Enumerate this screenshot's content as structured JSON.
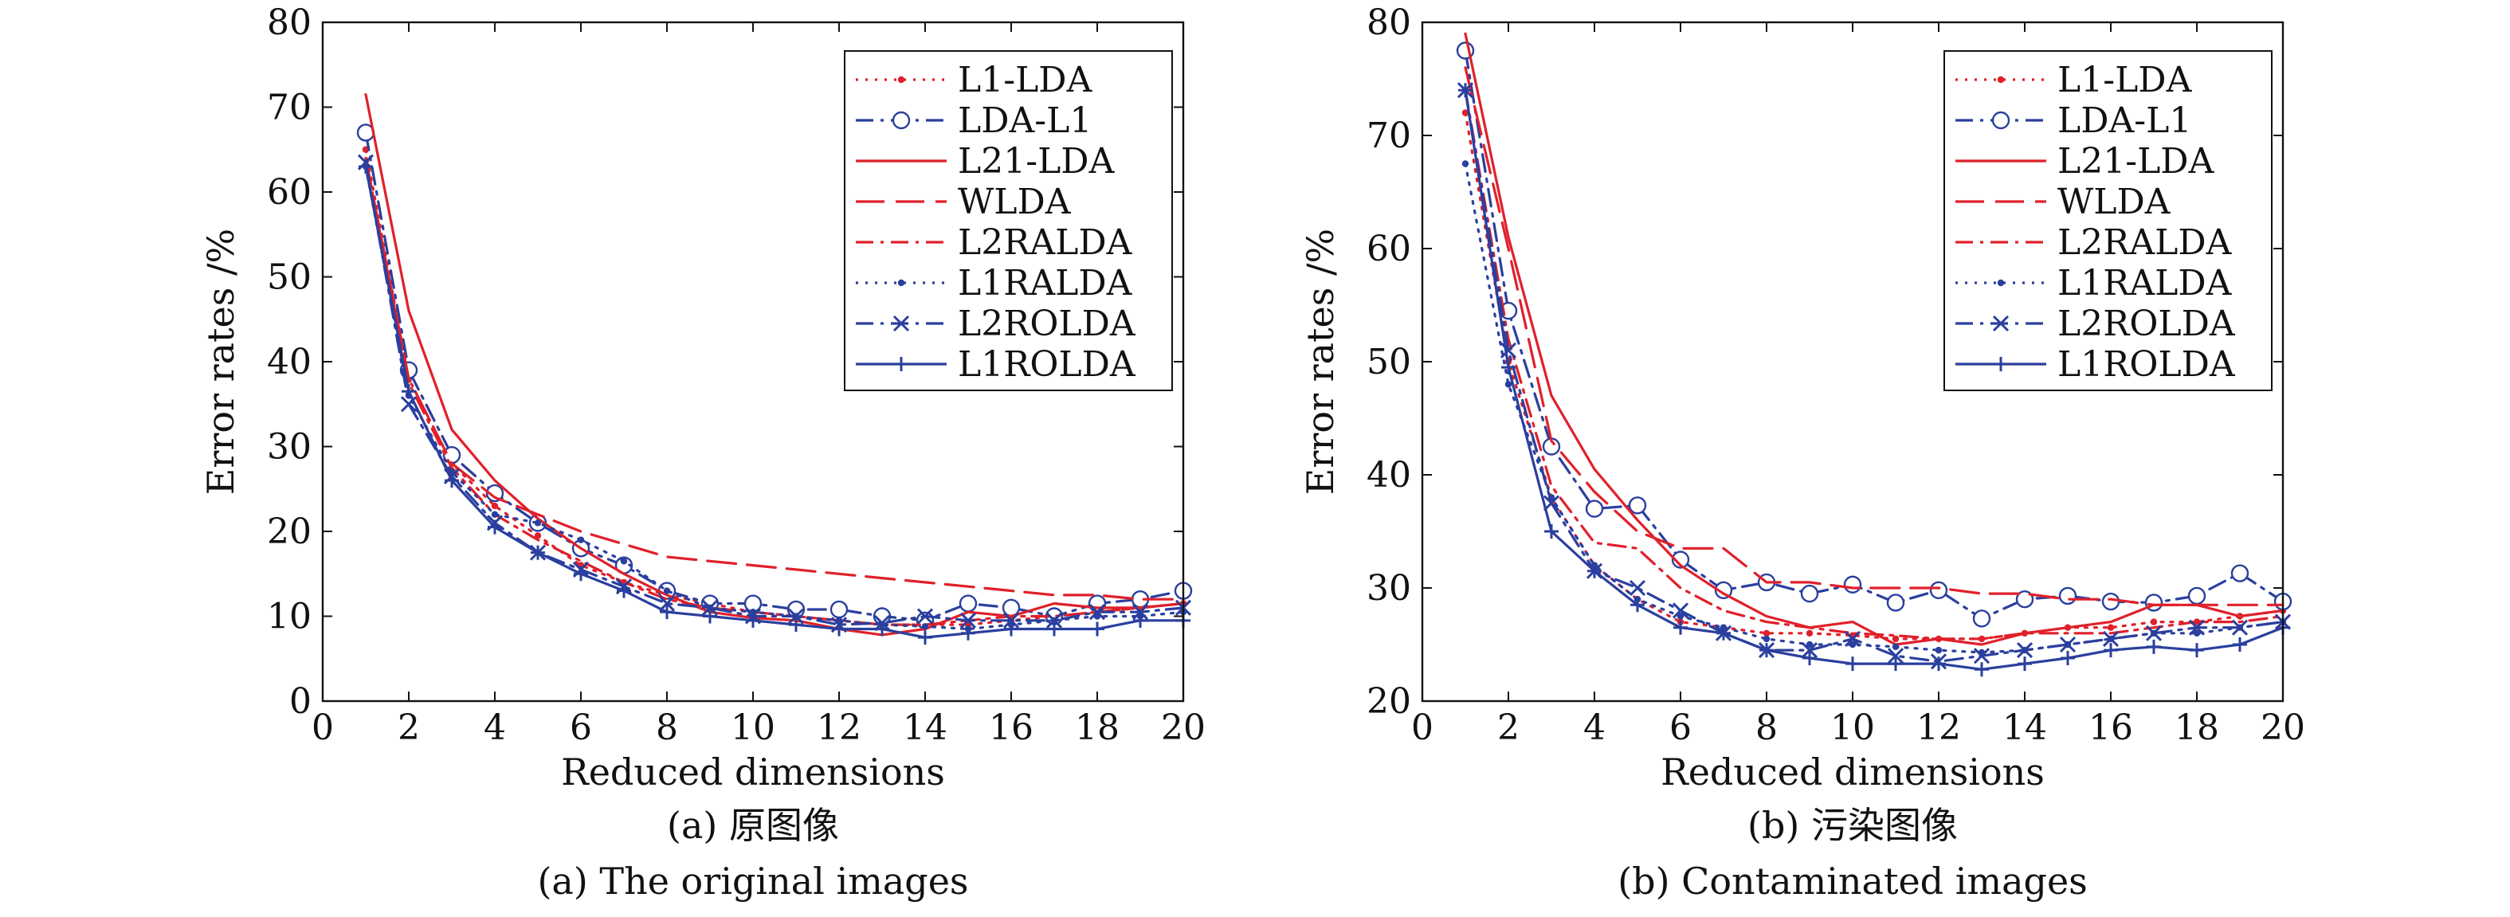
{
  "chart_data": [
    {
      "type": "line",
      "caption_cn": "(a) 原图像",
      "caption_en": "(a) The original images",
      "xlabel": "Reduced dimensions",
      "ylabel": "Error rates /%",
      "xlim": [
        0,
        20
      ],
      "ylim": [
        0,
        80
      ],
      "xticks": [
        0,
        2,
        4,
        6,
        8,
        10,
        12,
        14,
        16,
        18,
        20
      ],
      "yticks": [
        0,
        10,
        20,
        30,
        40,
        50,
        60,
        70,
        80
      ],
      "grid": false,
      "legend_position": "top-right",
      "x": [
        1,
        2,
        3,
        4,
        5,
        6,
        7,
        8,
        9,
        10,
        11,
        12,
        13,
        14,
        15,
        16,
        17,
        18,
        19,
        20
      ],
      "series": [
        {
          "name": "L1-LDA",
          "color": "#e0202a",
          "dash": "dotted",
          "marker": "dot",
          "values": [
            65,
            38,
            28,
            23,
            19.5,
            16,
            14,
            12.5,
            11.5,
            10.5,
            10,
            9.5,
            9,
            9,
            9,
            9.5,
            10,
            10.5,
            11,
            11.5
          ]
        },
        {
          "name": "LDA-L1",
          "color": "#2a3f9e",
          "dash": "dashdot",
          "marker": "circle",
          "values": [
            67,
            39,
            29,
            24.5,
            21,
            18,
            16,
            13,
            11.5,
            11.5,
            10.8,
            10.8,
            10,
            9.5,
            11.5,
            11,
            10,
            11.5,
            12,
            13
          ]
        },
        {
          "name": "L21-LDA",
          "color": "#e0202a",
          "dash": "solid",
          "marker": "none",
          "values": [
            71.5,
            46,
            32,
            26,
            21.5,
            18,
            15,
            12.5,
            10.5,
            9.8,
            9.5,
            8.5,
            7.8,
            8.5,
            10.5,
            10,
            11.5,
            11,
            11,
            11.5
          ]
        },
        {
          "name": "WLDA",
          "color": "#e0202a",
          "dash": "longdash",
          "marker": "none",
          "values": [
            64,
            38,
            28,
            24,
            22,
            20,
            18.5,
            17,
            16.5,
            16,
            15.5,
            15,
            14.5,
            14,
            13.5,
            13,
            12.5,
            12.5,
            12,
            12
          ]
        },
        {
          "name": "L2RALDA",
          "color": "#e0202a",
          "dash": "dashdot",
          "marker": "none",
          "values": [
            64,
            37.5,
            27.5,
            22,
            19,
            16.5,
            14,
            12,
            11,
            10.5,
            10,
            9.5,
            9,
            9,
            9.5,
            10,
            10,
            10.5,
            11,
            11.5
          ]
        },
        {
          "name": "L1RALDA",
          "color": "#2a3f9e",
          "dash": "dotted",
          "marker": "dot",
          "values": [
            63,
            36,
            27,
            22,
            21,
            19,
            16.5,
            13,
            11,
            10.5,
            10,
            9.5,
            9,
            8.8,
            8.5,
            9,
            9.5,
            10,
            10,
            10.5
          ]
        },
        {
          "name": "L2ROLDA",
          "color": "#2a3f9e",
          "dash": "dashdot",
          "marker": "x",
          "values": [
            63.5,
            35,
            26.5,
            21,
            17.5,
            15.5,
            13.5,
            11.5,
            11,
            10,
            10,
            9,
            9.2,
            10,
            9.5,
            9.5,
            9.5,
            10.5,
            10.5,
            11
          ]
        },
        {
          "name": "L1ROLDA",
          "color": "#2a3f9e",
          "dash": "solid",
          "marker": "plus",
          "values": [
            63,
            36.5,
            26,
            20.5,
            17.5,
            15,
            13,
            10.5,
            10,
            9.5,
            9,
            8.5,
            8.5,
            7.5,
            8,
            8.5,
            8.5,
            8.5,
            9.5,
            9.5
          ]
        }
      ]
    },
    {
      "type": "line",
      "caption_cn": "(b) 污染图像",
      "caption_en": "(b) Contaminated images",
      "xlabel": "Reduced dimensions",
      "ylabel": "Error rates /%",
      "xlim": [
        0,
        20
      ],
      "ylim": [
        20,
        80
      ],
      "xticks": [
        0,
        2,
        4,
        6,
        8,
        10,
        12,
        14,
        16,
        18,
        20
      ],
      "yticks": [
        20,
        30,
        40,
        50,
        60,
        70,
        80
      ],
      "grid": false,
      "legend_position": "top-right",
      "x": [
        1,
        2,
        3,
        4,
        5,
        6,
        7,
        8,
        9,
        10,
        11,
        12,
        13,
        14,
        15,
        16,
        17,
        18,
        19,
        20
      ],
      "series": [
        {
          "name": "L1-LDA",
          "color": "#e0202a",
          "dash": "dotted",
          "marker": "dot",
          "values": [
            72,
            50,
            38,
            32,
            29,
            27,
            26.5,
            26,
            26,
            25.8,
            25.5,
            25.5,
            25.5,
            26,
            26.5,
            26.5,
            27,
            27,
            27.5,
            28
          ]
        },
        {
          "name": "LDA-L1",
          "color": "#2a3f9e",
          "dash": "dashdot",
          "marker": "circle",
          "values": [
            77.5,
            54.5,
            42.5,
            37,
            37.3,
            32.5,
            29.8,
            30.5,
            29.5,
            30.3,
            28.7,
            29.8,
            27.3,
            29,
            29.3,
            28.8,
            28.7,
            29.3,
            31.3,
            28.8
          ]
        },
        {
          "name": "L21-LDA",
          "color": "#e0202a",
          "dash": "solid",
          "marker": "none",
          "values": [
            79,
            61,
            47,
            40.5,
            36,
            32,
            29.5,
            27.5,
            26.5,
            27,
            25,
            25.5,
            25,
            26,
            26.5,
            27,
            28.5,
            28.5,
            27.5,
            28
          ]
        },
        {
          "name": "WLDA",
          "color": "#e0202a",
          "dash": "longdash",
          "marker": "none",
          "values": [
            76,
            60,
            43,
            38.5,
            35,
            33.5,
            33.5,
            30.5,
            30.5,
            30,
            30,
            30,
            29.5,
            29.5,
            29,
            29,
            28.5,
            28.5,
            28.5,
            28.5
          ]
        },
        {
          "name": "L2RALDA",
          "color": "#e0202a",
          "dash": "dashdot",
          "marker": "none",
          "values": [
            74,
            52,
            39,
            34,
            33.5,
            30,
            28,
            27,
            26.5,
            26,
            25.8,
            25.5,
            25.5,
            26,
            26,
            26,
            26.5,
            27,
            27,
            27.5
          ]
        },
        {
          "name": "L1RALDA",
          "color": "#2a3f9e",
          "dash": "dotted",
          "marker": "dot",
          "values": [
            67.5,
            48,
            38,
            32,
            29,
            27.5,
            26.5,
            25.5,
            25,
            25,
            24.8,
            24.5,
            24.3,
            24.5,
            25,
            25.5,
            26,
            26,
            26.5,
            27
          ]
        },
        {
          "name": "L2ROLDA",
          "color": "#2a3f9e",
          "dash": "dashdot",
          "marker": "x",
          "values": [
            74,
            51,
            37.5,
            31.5,
            30,
            28,
            26,
            24.5,
            24.5,
            25.5,
            24,
            23.5,
            24,
            24.5,
            25,
            25.5,
            26,
            26.5,
            26.5,
            27
          ]
        },
        {
          "name": "L1ROLDA",
          "color": "#2a3f9e",
          "dash": "solid",
          "marker": "plus",
          "values": [
            74,
            49.5,
            35,
            31.5,
            28.5,
            26.5,
            26,
            24.5,
            23.8,
            23.3,
            23.3,
            23.3,
            22.8,
            23.3,
            23.8,
            24.5,
            24.8,
            24.5,
            25,
            26.5
          ]
        }
      ]
    }
  ]
}
